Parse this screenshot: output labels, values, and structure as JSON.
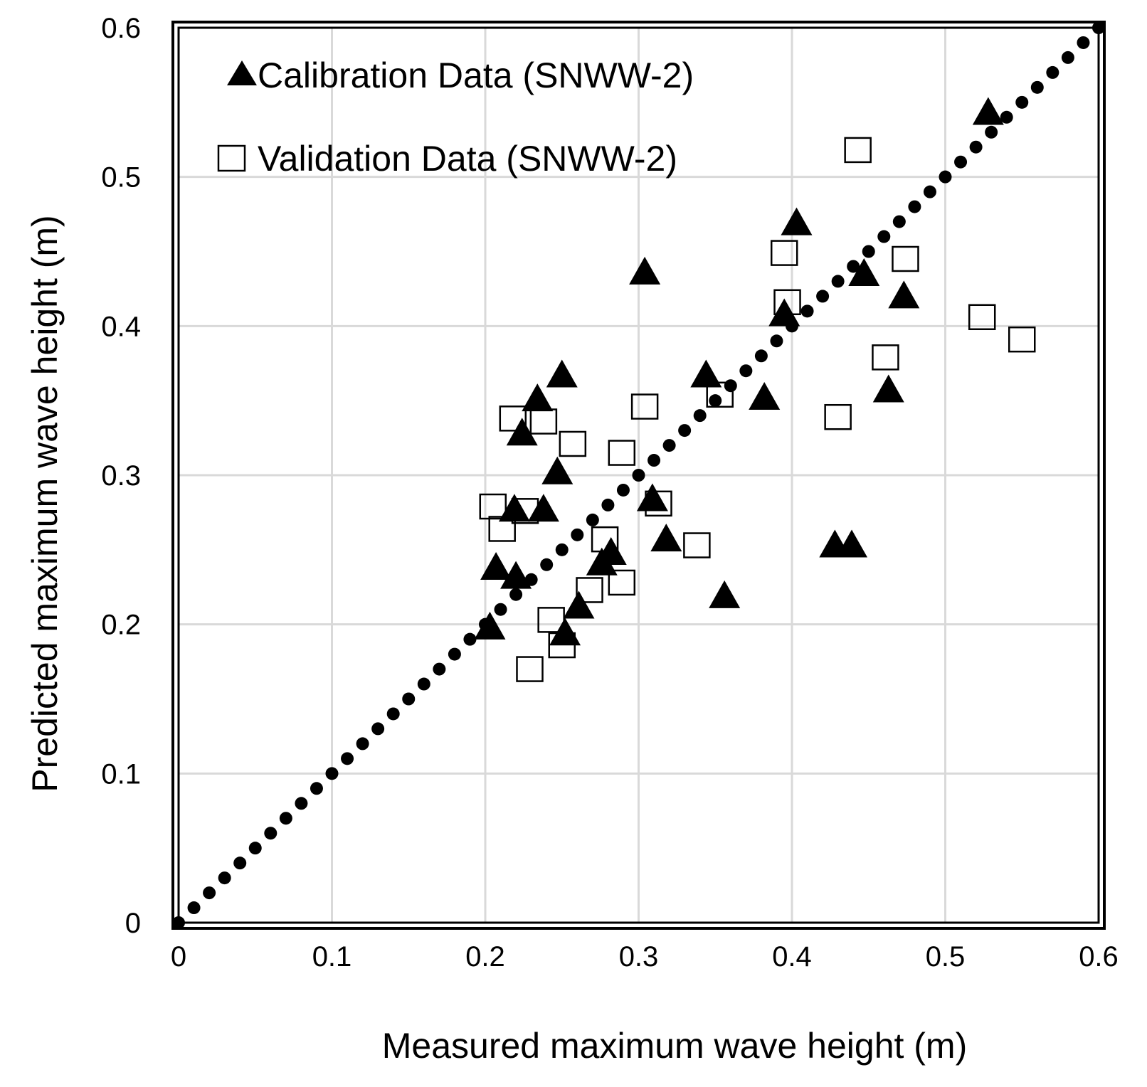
{
  "chart_data": {
    "type": "scatter",
    "title": "",
    "xlabel": "Measured maximum wave height (m)",
    "ylabel": "Predicted maximum wave height (m)",
    "xlim": [
      0,
      0.6
    ],
    "ylim": [
      0,
      0.6
    ],
    "x_ticks": [
      "0",
      "0.1",
      "0.2",
      "0.3",
      "0.4",
      "0.5",
      "0.6"
    ],
    "y_ticks": [
      "0",
      "0.1",
      "0.2",
      "0.3",
      "0.4",
      "0.5",
      "0.6"
    ],
    "grid": true,
    "legend_position": "top-left",
    "reference_line": {
      "style": "dotted",
      "from": [
        0,
        0
      ],
      "to": [
        0.6,
        0.6
      ],
      "color": "#000000"
    },
    "series": [
      {
        "name": "Calibration Data (SNWW-2)",
        "marker": "filled-triangle",
        "color": "#000000",
        "points": [
          [
            0.528,
            0.543
          ],
          [
            0.403,
            0.469
          ],
          [
            0.304,
            0.436
          ],
          [
            0.447,
            0.435
          ],
          [
            0.473,
            0.42
          ],
          [
            0.395,
            0.408
          ],
          [
            0.344,
            0.367
          ],
          [
            0.25,
            0.367
          ],
          [
            0.463,
            0.357
          ],
          [
            0.382,
            0.352
          ],
          [
            0.234,
            0.351
          ],
          [
            0.224,
            0.328
          ],
          [
            0.247,
            0.302
          ],
          [
            0.309,
            0.284
          ],
          [
            0.219,
            0.277
          ],
          [
            0.238,
            0.277
          ],
          [
            0.318,
            0.257
          ],
          [
            0.428,
            0.253
          ],
          [
            0.439,
            0.253
          ],
          [
            0.282,
            0.248
          ],
          [
            0.276,
            0.241
          ],
          [
            0.207,
            0.238
          ],
          [
            0.22,
            0.232
          ],
          [
            0.356,
            0.219
          ],
          [
            0.261,
            0.212
          ],
          [
            0.203,
            0.198
          ],
          [
            0.252,
            0.194
          ]
        ]
      },
      {
        "name": "Validation Data (SNWW-2)",
        "marker": "open-square",
        "color": "#000000",
        "points": [
          [
            0.443,
            0.518
          ],
          [
            0.395,
            0.449
          ],
          [
            0.474,
            0.445
          ],
          [
            0.397,
            0.416
          ],
          [
            0.524,
            0.406
          ],
          [
            0.55,
            0.391
          ],
          [
            0.461,
            0.379
          ],
          [
            0.353,
            0.354
          ],
          [
            0.304,
            0.346
          ],
          [
            0.43,
            0.339
          ],
          [
            0.218,
            0.338
          ],
          [
            0.238,
            0.336
          ],
          [
            0.257,
            0.321
          ],
          [
            0.289,
            0.315
          ],
          [
            0.313,
            0.281
          ],
          [
            0.205,
            0.279
          ],
          [
            0.226,
            0.276
          ],
          [
            0.211,
            0.264
          ],
          [
            0.278,
            0.257
          ],
          [
            0.338,
            0.253
          ],
          [
            0.268,
            0.223
          ],
          [
            0.289,
            0.228
          ],
          [
            0.243,
            0.203
          ],
          [
            0.25,
            0.186
          ],
          [
            0.229,
            0.17
          ]
        ]
      }
    ]
  }
}
